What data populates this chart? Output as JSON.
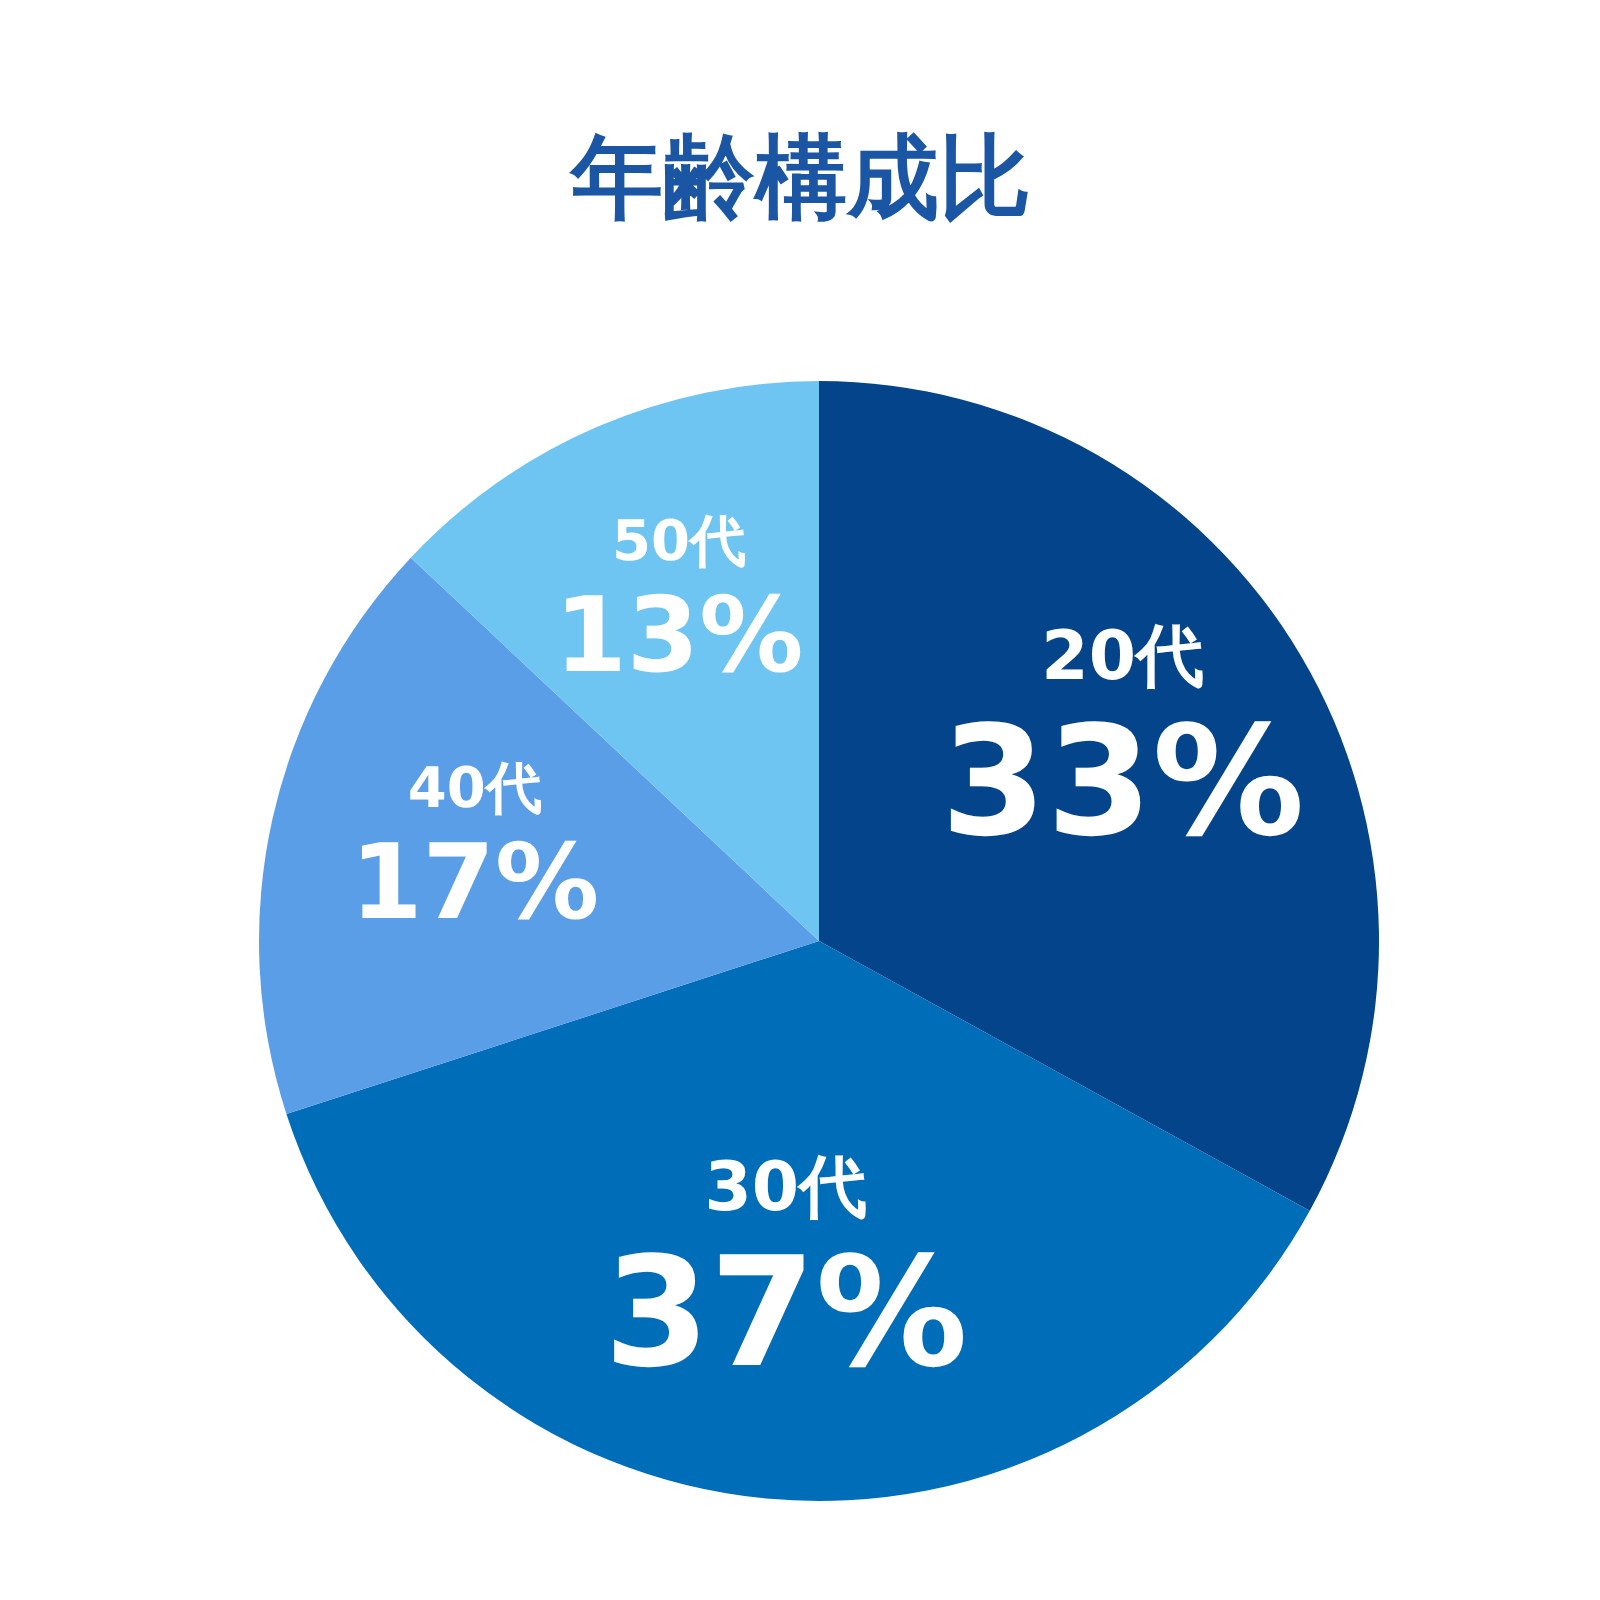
{
  "chart_data": {
    "type": "pie",
    "title": "年齢構成比",
    "categories": [
      "20代",
      "30代",
      "40代",
      "50代"
    ],
    "values": [
      33,
      37,
      17,
      13
    ],
    "colors": [
      "#03448a",
      "#006db8",
      "#5a9ee8",
      "#6ec5f2"
    ],
    "value_labels": [
      "33%",
      "37%",
      "17%",
      "13%"
    ]
  }
}
